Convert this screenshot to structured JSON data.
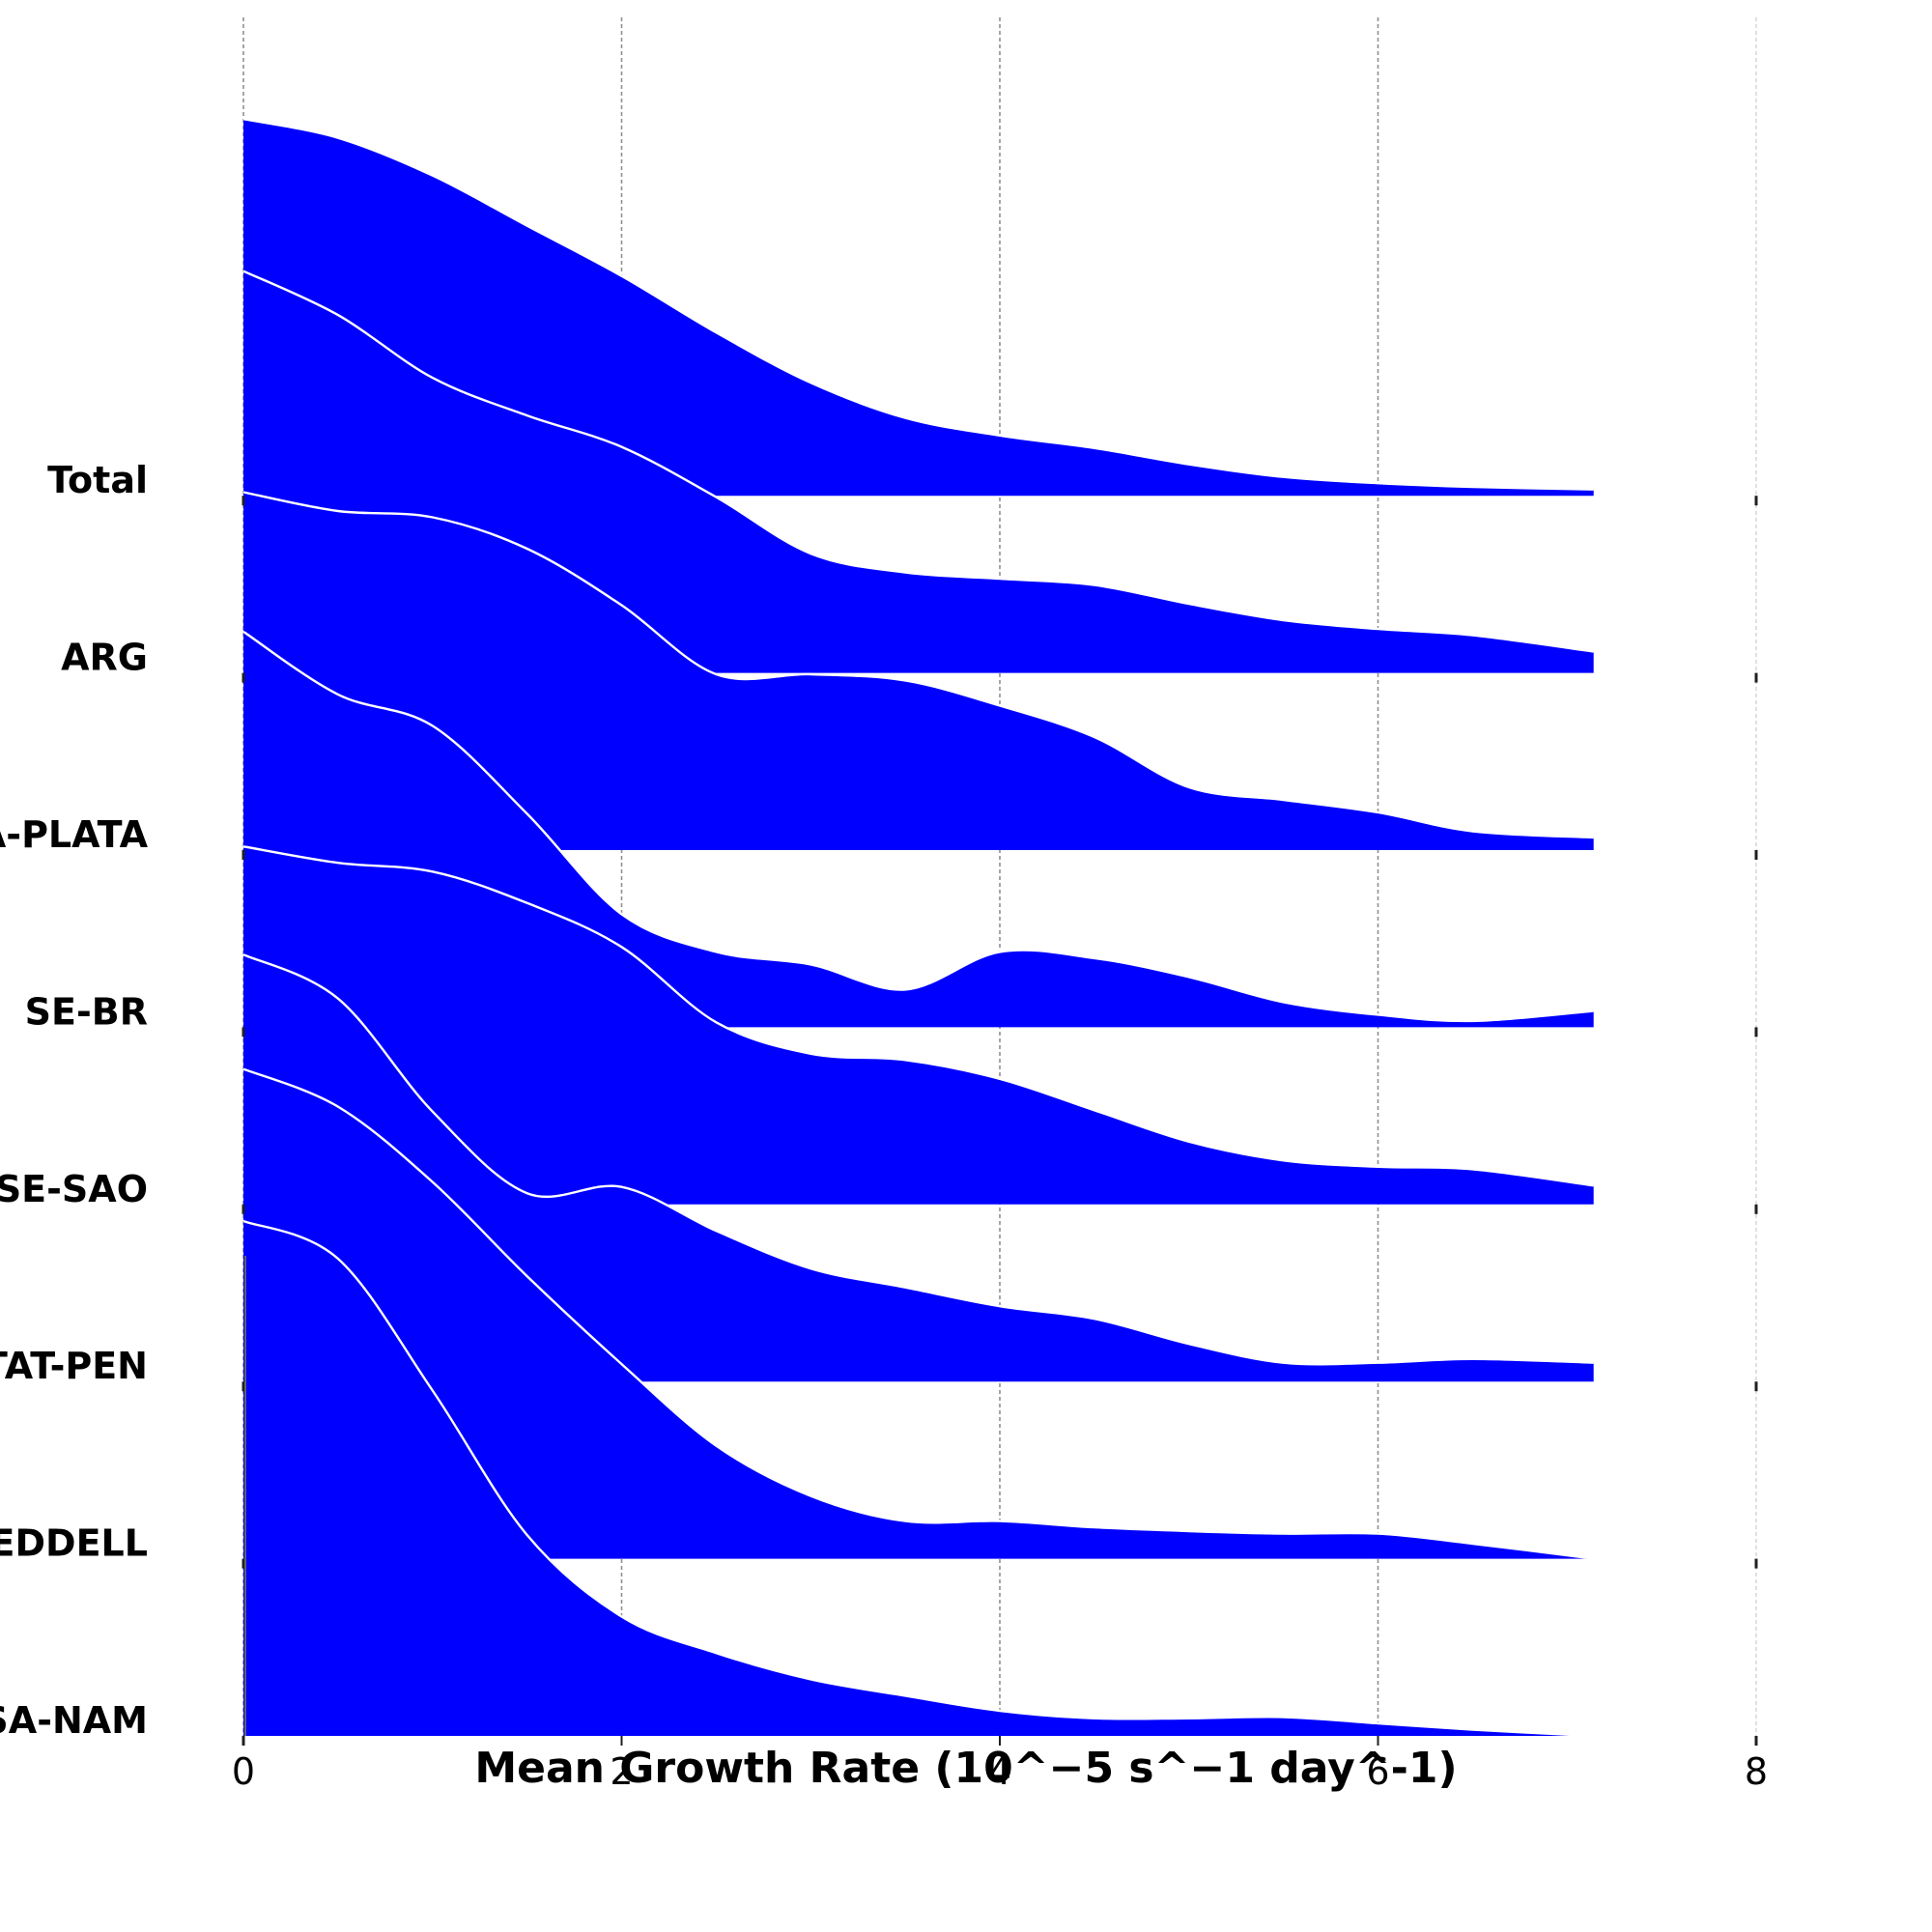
{
  "chart_data": {
    "type": "area",
    "chart_kind": "ridgeline",
    "xlabel": "Mean Growth Rate (10^−5 s^−1 day^-1)",
    "xlim": [
      0,
      8
    ],
    "x_ticks": [
      0,
      2,
      4,
      6,
      8
    ],
    "grid": "vertical dashed",
    "fill_color": "#0000ff",
    "edge_color": "#ffffff",
    "categories": [
      "Total",
      "ARG",
      "LA-PLATA",
      "SE-BR",
      "SE-SAO",
      "ANTAT-PEN",
      "WEDDELL",
      "SA-NAM"
    ],
    "x": [
      0,
      0.5,
      1,
      1.5,
      2,
      2.5,
      3,
      3.5,
      4,
      4.5,
      5,
      5.5,
      6,
      6.5,
      7.14
    ],
    "series": [
      {
        "name": "Total",
        "values": [
          3.0,
          2.85,
          2.55,
          2.15,
          1.75,
          1.3,
          0.9,
          0.62,
          0.48,
          0.38,
          0.25,
          0.15,
          0.1,
          0.07,
          0.05
        ]
      },
      {
        "name": "ARG",
        "values": [
          3.2,
          2.85,
          2.35,
          2.05,
          1.8,
          1.4,
          0.95,
          0.8,
          0.75,
          0.7,
          0.55,
          0.42,
          0.35,
          0.3,
          0.17
        ]
      },
      {
        "name": "LA-PLATA",
        "values": [
          2.85,
          2.7,
          2.65,
          2.4,
          1.95,
          1.4,
          1.4,
          1.35,
          1.15,
          0.9,
          0.5,
          0.4,
          0.3,
          0.15,
          0.1
        ]
      },
      {
        "name": "SE-BR",
        "values": [
          3.15,
          2.65,
          2.4,
          1.7,
          0.9,
          0.6,
          0.5,
          0.3,
          0.6,
          0.55,
          0.4,
          0.2,
          0.1,
          0.05,
          0.13
        ]
      },
      {
        "name": "SE-SAO",
        "values": [
          2.85,
          2.72,
          2.65,
          2.4,
          2.05,
          1.45,
          1.2,
          1.15,
          1.0,
          0.75,
          0.5,
          0.35,
          0.3,
          0.28,
          0.15
        ]
      },
      {
        "name": "ANTAT-PEN",
        "values": [
          3.4,
          3.05,
          2.15,
          1.5,
          1.55,
          1.2,
          0.9,
          0.75,
          0.6,
          0.5,
          0.3,
          0.15,
          0.15,
          0.18,
          0.15
        ]
      },
      {
        "name": "WEDDELL",
        "values": [
          3.9,
          3.6,
          3.0,
          2.25,
          1.55,
          0.9,
          0.5,
          0.3,
          0.3,
          0.25,
          0.22,
          0.2,
          0.2,
          0.12,
          0.0
        ]
      },
      {
        "name": "SA-NAM",
        "values": [
          4.1,
          3.8,
          2.75,
          1.6,
          0.95,
          0.66,
          0.45,
          0.32,
          0.2,
          0.14,
          0.14,
          0.15,
          0.1,
          0.05,
          0.0
        ]
      }
    ]
  }
}
